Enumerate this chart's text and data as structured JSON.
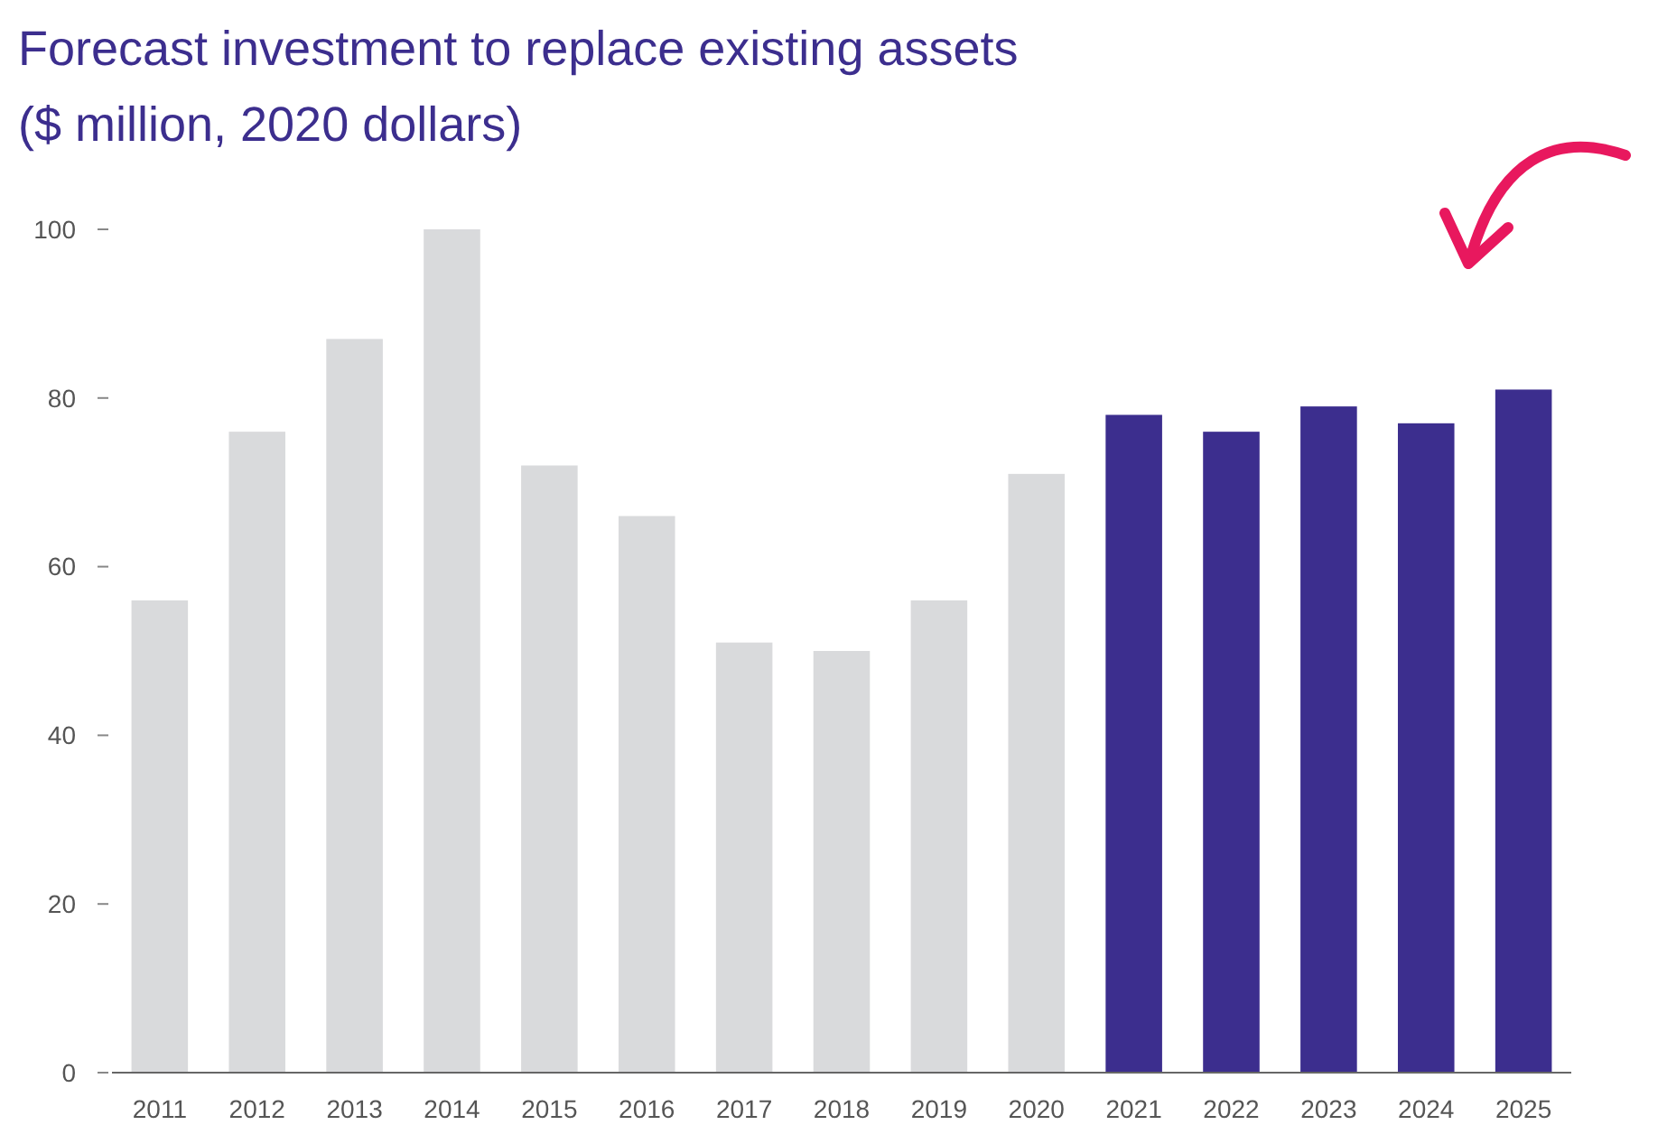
{
  "chart_data": {
    "type": "bar",
    "title": "Forecast investment to replace existing assets",
    "subtitle": "($ million, 2020 dollars)",
    "categories": [
      "2011",
      "2012",
      "2013",
      "2014",
      "2015",
      "2016",
      "2017",
      "2018",
      "2019",
      "2020",
      "2021",
      "2022",
      "2023",
      "2024",
      "2025"
    ],
    "values": [
      56,
      76,
      87,
      100,
      72,
      66,
      51,
      50,
      56,
      71,
      78,
      76,
      79,
      77,
      81
    ],
    "colors": [
      "#d9dadc",
      "#d9dadc",
      "#d9dadc",
      "#d9dadc",
      "#d9dadc",
      "#d9dadc",
      "#d9dadc",
      "#d9dadc",
      "#d9dadc",
      "#d9dadc",
      "#3c2e8e",
      "#3c2e8e",
      "#3c2e8e",
      "#3c2e8e",
      "#3c2e8e"
    ],
    "ylim": [
      0,
      100
    ],
    "yticks": [
      0,
      20,
      40,
      60,
      80,
      100
    ],
    "grid": false
  }
}
